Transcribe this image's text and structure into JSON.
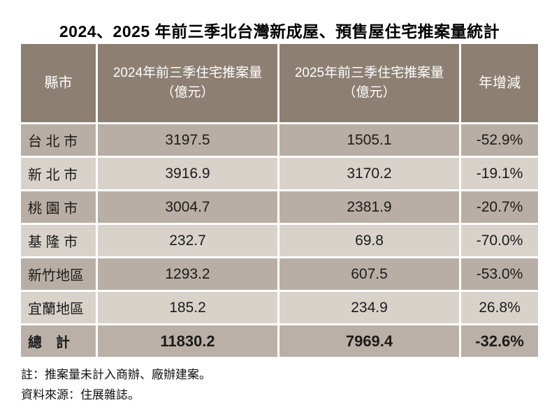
{
  "title": "2024、2025 年前三季北台灣新成屋、預售屋住宅推案量統計",
  "table": {
    "header": {
      "city": "縣市",
      "y2024_line1": "2024年前三季住宅推案量",
      "y2024_line2": "（億元）",
      "y2025_line1": "2025年前三季住宅推案量",
      "y2025_line2": "（億元）",
      "yoy": "年增減"
    },
    "rows": [
      {
        "city": "台 北 市",
        "v2024": "3197.5",
        "v2025": "1505.1",
        "yoy": "-52.9%"
      },
      {
        "city": "新 北 市",
        "v2024": "3916.9",
        "v2025": "3170.2",
        "yoy": "-19.1%"
      },
      {
        "city": "桃 園 市",
        "v2024": "3004.7",
        "v2025": "2381.9",
        "yoy": "-20.7%"
      },
      {
        "city": "基 隆 市",
        "v2024": "232.7",
        "v2025": "69.8",
        "yoy": "-70.0%"
      },
      {
        "city": "新竹地區",
        "v2024": "1293.2",
        "v2025": "607.5",
        "yoy": "-53.0%"
      },
      {
        "city": "宜蘭地區",
        "v2024": "185.2",
        "v2025": "234.9",
        "yoy": "26.8%"
      }
    ],
    "total": {
      "label": "總　計",
      "v2024": "11830.2",
      "v2025": "7969.4",
      "yoy": "-32.6%"
    }
  },
  "notes": {
    "note1": "註：推案量未計入商辦、廠辦建案。",
    "note2": "資料來源：住展雜誌。"
  },
  "colors": {
    "header_bg": "#8D7F72",
    "row_dark": "#B9AEA5",
    "row_light": "#D8D2CB",
    "total_bg": "#BBB0A7",
    "header_text": "#FFFFFF",
    "body_text": "#1B1B1B",
    "page_bg": "#FFFFFF"
  },
  "chart_data": {
    "type": "table",
    "title": "2024、2025 年前三季北台灣新成屋、預售屋住宅推案量統計",
    "columns": [
      "縣市",
      "2024年前三季住宅推案量（億元）",
      "2025年前三季住宅推案量（億元）",
      "年增減"
    ],
    "rows": [
      [
        "台北市",
        3197.5,
        1505.1,
        "-52.9%"
      ],
      [
        "新北市",
        3916.9,
        3170.2,
        "-19.1%"
      ],
      [
        "桃園市",
        3004.7,
        2381.9,
        "-20.7%"
      ],
      [
        "基隆市",
        232.7,
        69.8,
        "-70.0%"
      ],
      [
        "新竹地區",
        1293.2,
        607.5,
        "-53.0%"
      ],
      [
        "宜蘭地區",
        185.2,
        234.9,
        "26.8%"
      ]
    ],
    "total_row": [
      "總計",
      11830.2,
      7969.4,
      "-32.6%"
    ],
    "notes": [
      "註：推案量未計入商辦、廠辦建案。",
      "資料來源：住展雜誌。"
    ]
  }
}
